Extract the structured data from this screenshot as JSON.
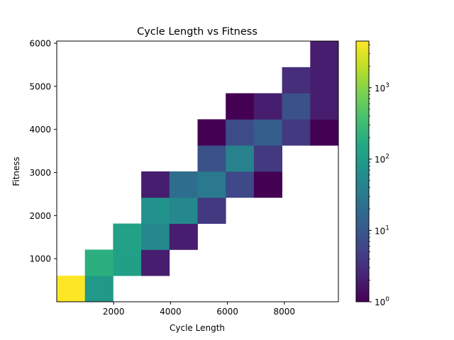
{
  "chart_data": {
    "type": "heatmap",
    "title": "Cycle Length vs Fitness",
    "xlabel": "Cycle Length",
    "ylabel": "Fitness",
    "xlim": [
      0,
      9900
    ],
    "ylim": [
      0,
      6050
    ],
    "x_ticks": [
      2000,
      4000,
      6000,
      8000
    ],
    "y_ticks": [
      1000,
      2000,
      3000,
      4000,
      5000,
      6000
    ],
    "bin_width_x": 990,
    "bin_height_y": 605,
    "colorbar": {
      "scale": "log",
      "colormap": "viridis",
      "range": [
        1,
        4500
      ],
      "ticks": [
        {
          "value": 1,
          "label": "10",
          "exp": "0"
        },
        {
          "value": 10,
          "label": "10",
          "exp": "1"
        },
        {
          "value": 100,
          "label": "10",
          "exp": "2"
        },
        {
          "value": 1000,
          "label": "10",
          "exp": "3"
        }
      ]
    },
    "cells": [
      {
        "x": [
          0,
          990
        ],
        "y": [
          0,
          605
        ],
        "count": 4500
      },
      {
        "x": [
          990,
          1980
        ],
        "y": [
          0,
          605
        ],
        "count": 90
      },
      {
        "x": [
          990,
          1980
        ],
        "y": [
          605,
          1210
        ],
        "count": 200
      },
      {
        "x": [
          1980,
          2970
        ],
        "y": [
          605,
          1210
        ],
        "count": 110
      },
      {
        "x": [
          1980,
          2970
        ],
        "y": [
          1210,
          1815
        ],
        "count": 120
      },
      {
        "x": [
          2970,
          3960
        ],
        "y": [
          605,
          1210
        ],
        "count": 2
      },
      {
        "x": [
          2970,
          3960
        ],
        "y": [
          1210,
          1815
        ],
        "count": 50
      },
      {
        "x": [
          2970,
          3960
        ],
        "y": [
          1815,
          2420
        ],
        "count": 70
      },
      {
        "x": [
          2970,
          3960
        ],
        "y": [
          2420,
          3025
        ],
        "count": 2
      },
      {
        "x": [
          3960,
          4950
        ],
        "y": [
          1210,
          1815
        ],
        "count": 2
      },
      {
        "x": [
          3960,
          4950
        ],
        "y": [
          1815,
          2420
        ],
        "count": 50
      },
      {
        "x": [
          3960,
          4950
        ],
        "y": [
          2420,
          3025
        ],
        "count": 20
      },
      {
        "x": [
          4950,
          5940
        ],
        "y": [
          1815,
          2420
        ],
        "count": 4
      },
      {
        "x": [
          4950,
          5940
        ],
        "y": [
          2420,
          3025
        ],
        "count": 30
      },
      {
        "x": [
          4950,
          5940
        ],
        "y": [
          3025,
          3630
        ],
        "count": 8
      },
      {
        "x": [
          4950,
          5940
        ],
        "y": [
          3630,
          4235
        ],
        "count": 1
      },
      {
        "x": [
          5940,
          6930
        ],
        "y": [
          2420,
          3025
        ],
        "count": 6
      },
      {
        "x": [
          5940,
          6930
        ],
        "y": [
          3025,
          3630
        ],
        "count": 40
      },
      {
        "x": [
          5940,
          6930
        ],
        "y": [
          3630,
          4235
        ],
        "count": 7
      },
      {
        "x": [
          5940,
          6930
        ],
        "y": [
          4235,
          4840
        ],
        "count": 1
      },
      {
        "x": [
          6930,
          7920
        ],
        "y": [
          2420,
          3025
        ],
        "count": 1
      },
      {
        "x": [
          6930,
          7920
        ],
        "y": [
          3025,
          3630
        ],
        "count": 4
      },
      {
        "x": [
          6930,
          7920
        ],
        "y": [
          3630,
          4235
        ],
        "count": 12
      },
      {
        "x": [
          6930,
          7920
        ],
        "y": [
          4235,
          4840
        ],
        "count": 2
      },
      {
        "x": [
          7920,
          8910
        ],
        "y": [
          3630,
          4235
        ],
        "count": 4
      },
      {
        "x": [
          7920,
          8910
        ],
        "y": [
          4235,
          4840
        ],
        "count": 8
      },
      {
        "x": [
          7920,
          8910
        ],
        "y": [
          4840,
          5445
        ],
        "count": 3
      },
      {
        "x": [
          8910,
          9900
        ],
        "y": [
          3630,
          4235
        ],
        "count": 1
      },
      {
        "x": [
          8910,
          9900
        ],
        "y": [
          4235,
          4840
        ],
        "count": 2
      },
      {
        "x": [
          8910,
          9900
        ],
        "y": [
          4840,
          5445
        ],
        "count": 2
      },
      {
        "x": [
          8910,
          9900
        ],
        "y": [
          5445,
          6050
        ],
        "count": 2
      }
    ]
  }
}
